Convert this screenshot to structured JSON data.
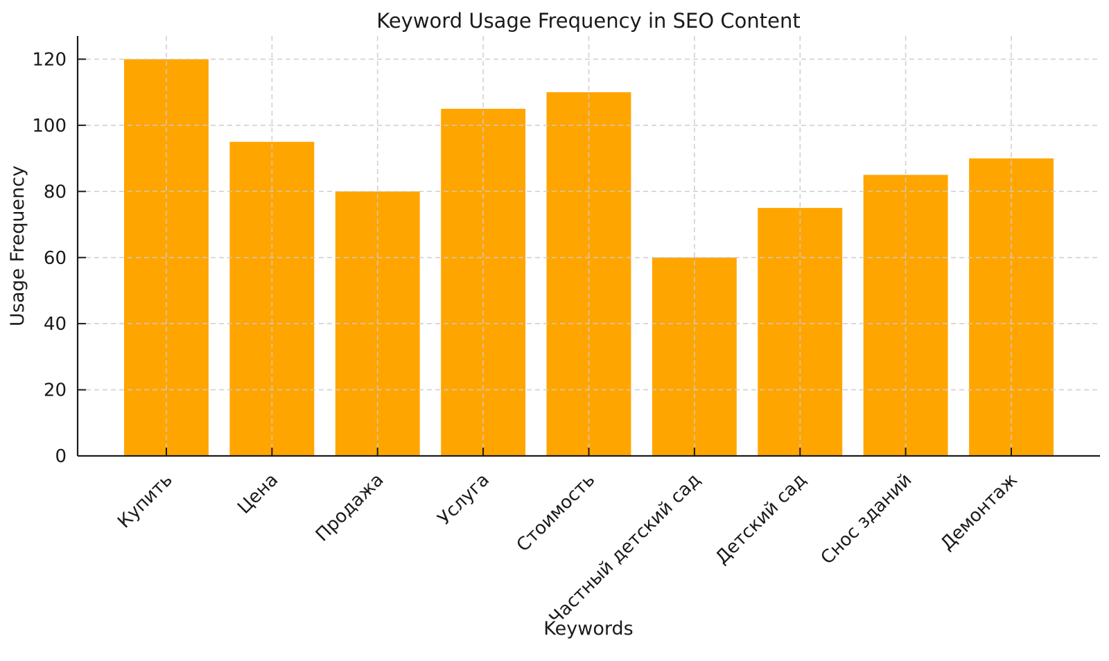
{
  "figure": {
    "background": "#ffffff"
  },
  "chart_data": {
    "type": "bar",
    "title": "Keyword Usage Frequency in SEO Content",
    "xlabel": "Keywords",
    "ylabel": "Usage Frequency",
    "categories": [
      "Купить",
      "Цена",
      "Продажа",
      "Услуга",
      "Стоимость",
      "Частный детский сад",
      "Детский сад",
      "Снос зданий",
      "Демонтаж"
    ],
    "values": [
      120,
      95,
      80,
      105,
      110,
      60,
      75,
      85,
      90
    ],
    "yticks": [
      0,
      20,
      40,
      60,
      80,
      100,
      120
    ],
    "ylim": [
      0,
      127
    ],
    "bar_color": "#FFA500",
    "grid_color": "#cccccc",
    "axis_color": "#1a1a1a",
    "text_color": "#1a1a1a",
    "grid": "dashed gridlines on both axes, drawn above bars",
    "legend": "none",
    "x_tick_rotation_deg": 45
  }
}
